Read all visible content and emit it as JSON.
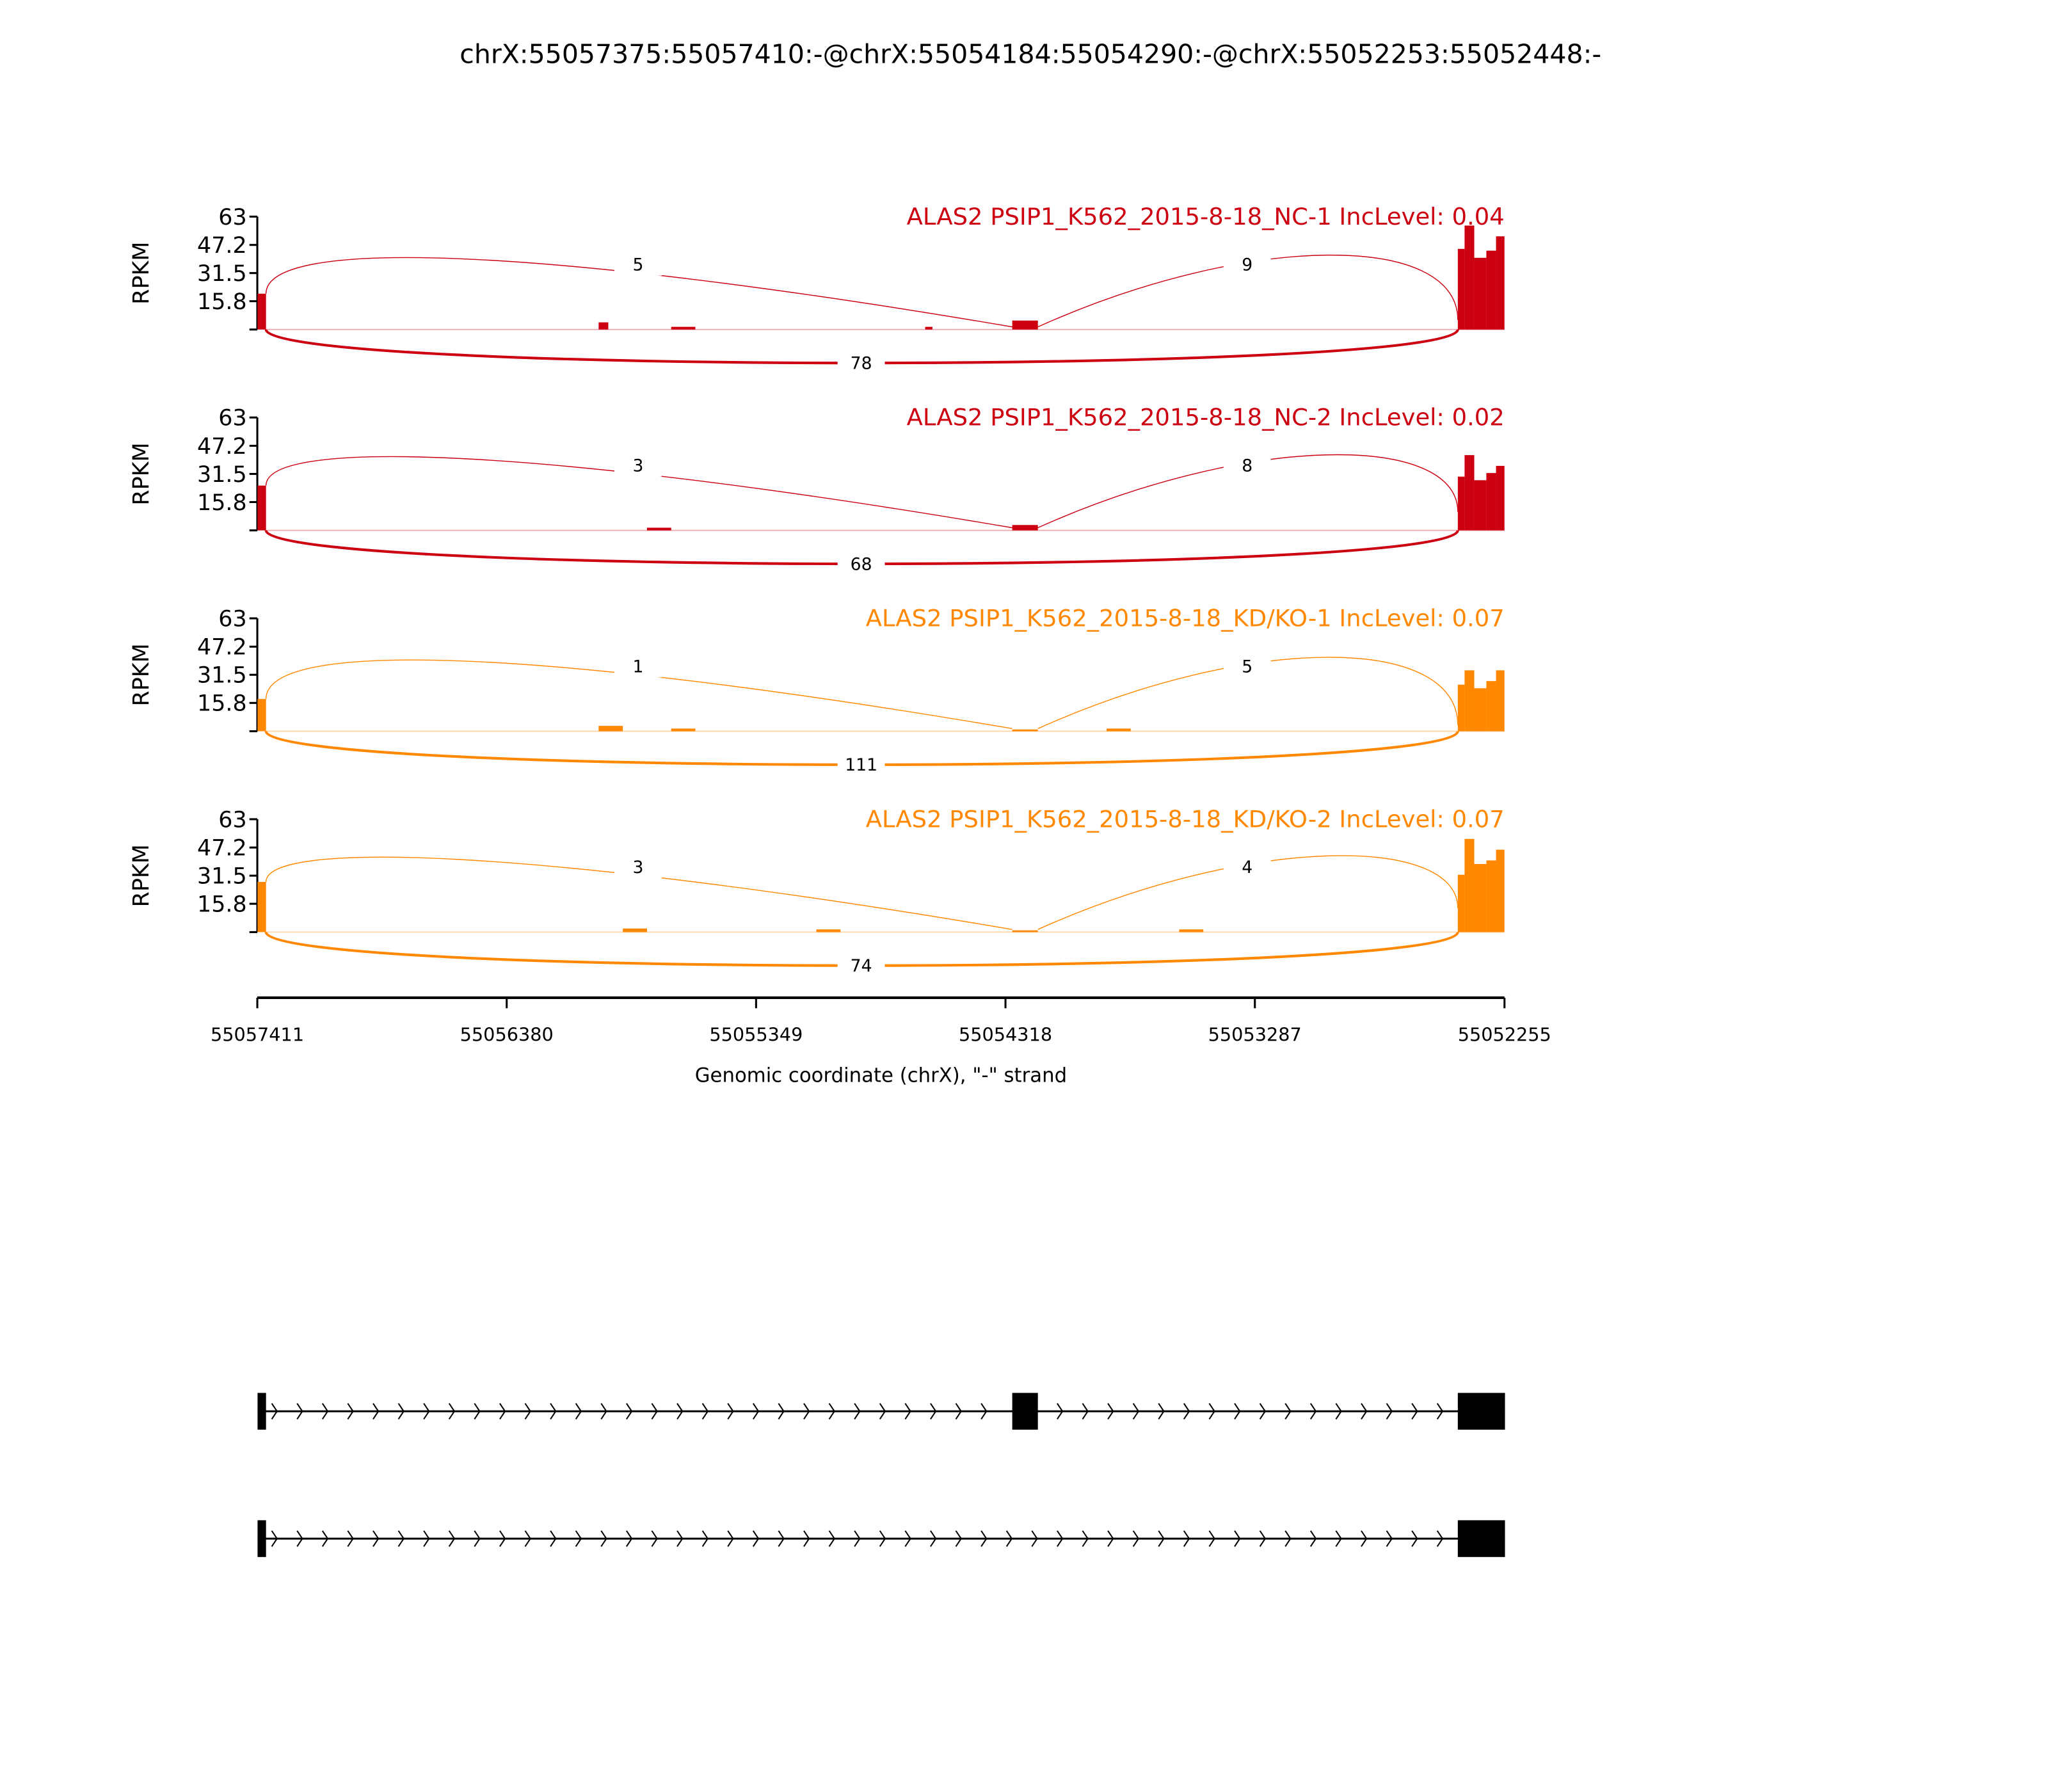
{
  "chart_data": {
    "type": "area",
    "title": "chrX:55057375:55057410:-@chrX:55054184:55054290:-@chrX:55052253:55052448:-",
    "xlabel": "Genomic coordinate (chrX), \"-\" strand",
    "ylabel": "RPKM",
    "xlim": [
      55057411,
      55052255
    ],
    "xticks": [
      "55057411",
      "55056380",
      "55055349",
      "55054318",
      "55053287",
      "55052255"
    ],
    "ylim": [
      0,
      63
    ],
    "yticks": [
      "63",
      "47.2",
      "31.5",
      "15.8"
    ],
    "exons": [
      [
        55057375,
        55057410
      ],
      [
        55054184,
        55054290
      ],
      [
        55052253,
        55052448
      ]
    ],
    "samples": [
      {
        "title": "ALAS2 PSIP1_K562_2015-8-18_NC-1 IncLevel: 0.04",
        "color": "#cc0011",
        "junctions": {
          "inc1": "5",
          "inc2": "9",
          "skip": "78"
        },
        "coverage": [
          [
            55057410,
            55057375,
            20
          ],
          [
            55056000,
            55055960,
            4
          ],
          [
            55055700,
            55055600,
            1.5
          ],
          [
            55054650,
            55054620,
            1.5
          ],
          [
            55054290,
            55054184,
            5
          ],
          [
            55052448,
            55052420,
            45
          ],
          [
            55052420,
            55052380,
            58
          ],
          [
            55052380,
            55052330,
            40
          ],
          [
            55052330,
            55052290,
            44
          ],
          [
            55052290,
            55052255,
            52
          ]
        ]
      },
      {
        "title": "ALAS2 PSIP1_K562_2015-8-18_NC-2 IncLevel: 0.02",
        "color": "#cc0011",
        "junctions": {
          "inc1": "3",
          "inc2": "8",
          "skip": "68"
        },
        "coverage": [
          [
            55057410,
            55057375,
            25
          ],
          [
            55055800,
            55055700,
            1.5
          ],
          [
            55054290,
            55054184,
            3
          ],
          [
            55052448,
            55052420,
            30
          ],
          [
            55052420,
            55052380,
            42
          ],
          [
            55052380,
            55052330,
            28
          ],
          [
            55052330,
            55052290,
            32
          ],
          [
            55052290,
            55052255,
            36
          ]
        ]
      },
      {
        "title": "ALAS2 PSIP1_K562_2015-8-18_KD/KO-1 IncLevel: 0.07",
        "color": "#ff8800",
        "junctions": {
          "inc1": "1",
          "inc2": "5",
          "skip": "111"
        },
        "coverage": [
          [
            55057410,
            55057375,
            18
          ],
          [
            55056000,
            55055900,
            3
          ],
          [
            55055700,
            55055600,
            1.5
          ],
          [
            55054290,
            55054184,
            1
          ],
          [
            55053900,
            55053800,
            1.5
          ],
          [
            55052448,
            55052420,
            26
          ],
          [
            55052420,
            55052380,
            34
          ],
          [
            55052380,
            55052330,
            24
          ],
          [
            55052330,
            55052290,
            28
          ],
          [
            55052290,
            55052255,
            34
          ]
        ]
      },
      {
        "title": "ALAS2 PSIP1_K562_2015-8-18_KD/KO-2 IncLevel: 0.07",
        "color": "#ff8800",
        "junctions": {
          "inc1": "3",
          "inc2": "4",
          "skip": "74"
        },
        "coverage": [
          [
            55057410,
            55057375,
            28
          ],
          [
            55055900,
            55055800,
            2
          ],
          [
            55055100,
            55055000,
            1.5
          ],
          [
            55054290,
            55054184,
            1
          ],
          [
            55053600,
            55053500,
            1.5
          ],
          [
            55052448,
            55052420,
            32
          ],
          [
            55052420,
            55052380,
            52
          ],
          [
            55052380,
            55052330,
            38
          ],
          [
            55052330,
            55052290,
            40
          ],
          [
            55052290,
            55052255,
            46
          ]
        ]
      }
    ],
    "isoforms": [
      {
        "exons": [
          [
            55057375,
            55057410
          ],
          [
            55054184,
            55054290
          ],
          [
            55052253,
            55052448
          ]
        ]
      },
      {
        "exons": [
          [
            55057375,
            55057410
          ],
          [
            55052253,
            55052448
          ]
        ]
      }
    ]
  }
}
